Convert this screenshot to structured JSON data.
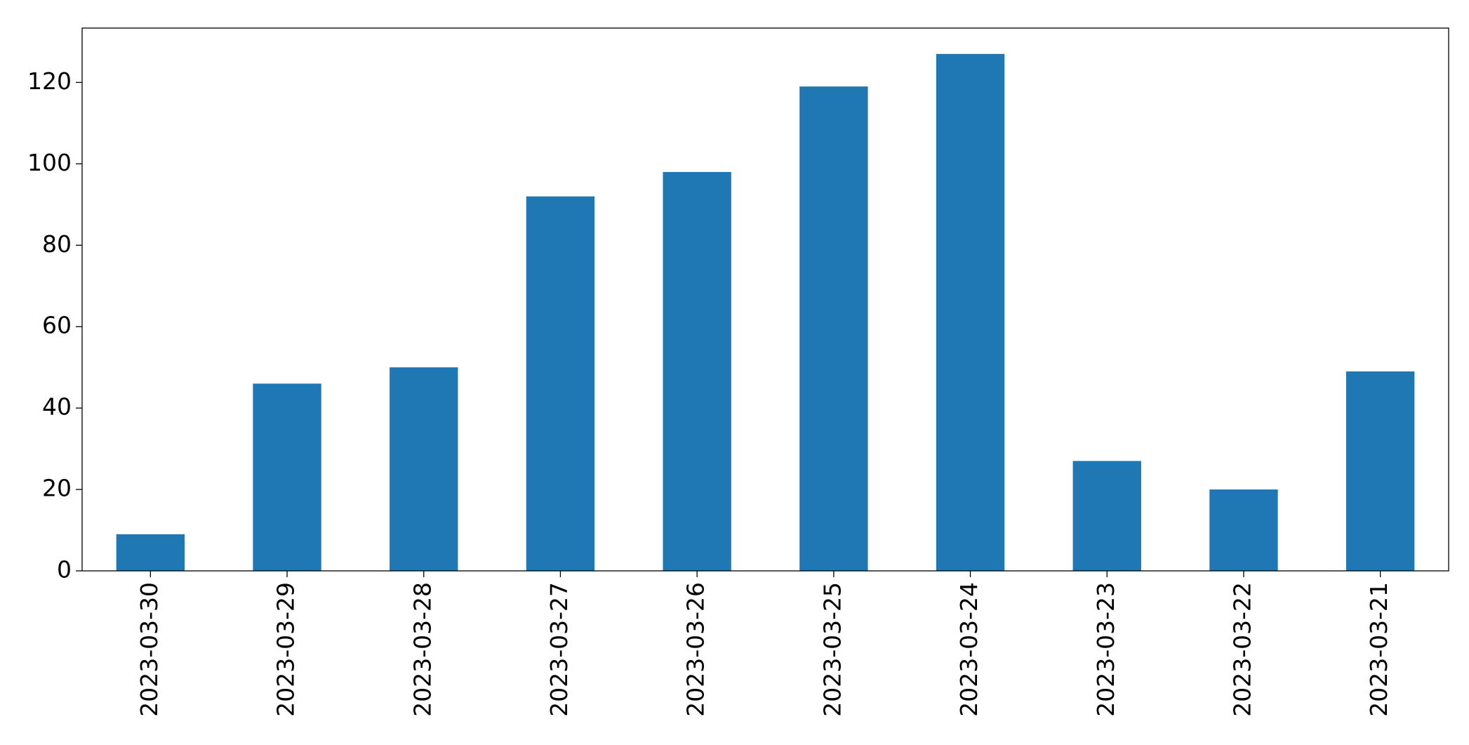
{
  "chart_data": {
    "type": "bar",
    "categories": [
      "2023-03-30",
      "2023-03-29",
      "2023-03-28",
      "2023-03-27",
      "2023-03-26",
      "2023-03-25",
      "2023-03-24",
      "2023-03-23",
      "2023-03-22",
      "2023-03-21"
    ],
    "values": [
      9,
      46,
      50,
      92,
      98,
      119,
      127,
      27,
      20,
      49
    ],
    "color": "#1f77b4",
    "ylim": [
      0,
      133.35
    ],
    "yticks": [
      0,
      20,
      40,
      60,
      80,
      100,
      120
    ],
    "grid": false
  }
}
